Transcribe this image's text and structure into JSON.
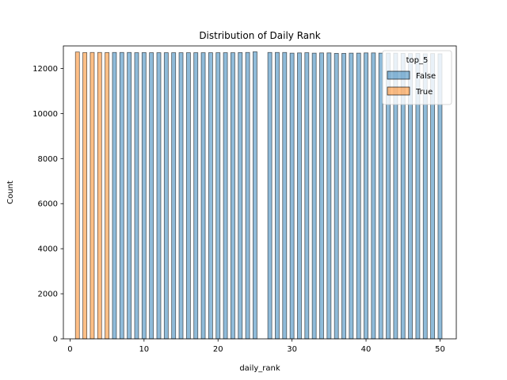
{
  "chart_data": {
    "type": "bar",
    "title": "Distribution of Daily Rank",
    "xlabel": "daily_rank",
    "ylabel": "Count",
    "xlim": [
      -0.9,
      52.2
    ],
    "ylim": [
      0,
      13000
    ],
    "x_ticks": [
      0,
      10,
      20,
      30,
      40,
      50
    ],
    "x_tick_labels": [
      "0",
      "10",
      "20",
      "30",
      "40",
      "50"
    ],
    "y_ticks": [
      0,
      2000,
      4000,
      6000,
      8000,
      10000,
      12000
    ],
    "y_tick_labels": [
      "0",
      "2000",
      "4000",
      "6000",
      "8000",
      "10000",
      "12000"
    ],
    "grid": false,
    "legend": {
      "title": "top_5",
      "placement": "top-right",
      "entries": [
        "False",
        "True"
      ]
    },
    "colors": {
      "False": "#1f77b4",
      "True": "#ff7f0e"
    },
    "series": [
      {
        "name": "True",
        "x": [
          1,
          2,
          3,
          4,
          5
        ],
        "values": [
          12730,
          12705,
          12710,
          12710,
          12705
        ]
      },
      {
        "name": "False",
        "x": [
          6,
          7,
          8,
          9,
          10,
          11,
          12,
          13,
          14,
          15,
          16,
          17,
          18,
          19,
          20,
          21,
          22,
          23,
          24,
          25,
          27,
          28,
          29,
          30,
          31,
          32,
          33,
          34,
          35,
          36,
          37,
          38,
          39,
          40,
          41,
          42,
          43,
          44,
          45,
          46,
          47,
          48,
          49,
          50
        ],
        "values": [
          12710,
          12710,
          12710,
          12700,
          12705,
          12700,
          12700,
          12700,
          12700,
          12700,
          12700,
          12700,
          12700,
          12700,
          12700,
          12700,
          12700,
          12705,
          12710,
          12740,
          12710,
          12710,
          12710,
          12680,
          12690,
          12700,
          12680,
          12690,
          12690,
          12670,
          12670,
          12680,
          12680,
          12690,
          12690,
          12680,
          12680,
          12680,
          12670,
          12660,
          12670,
          12650,
          12660,
          12650
        ]
      }
    ]
  }
}
